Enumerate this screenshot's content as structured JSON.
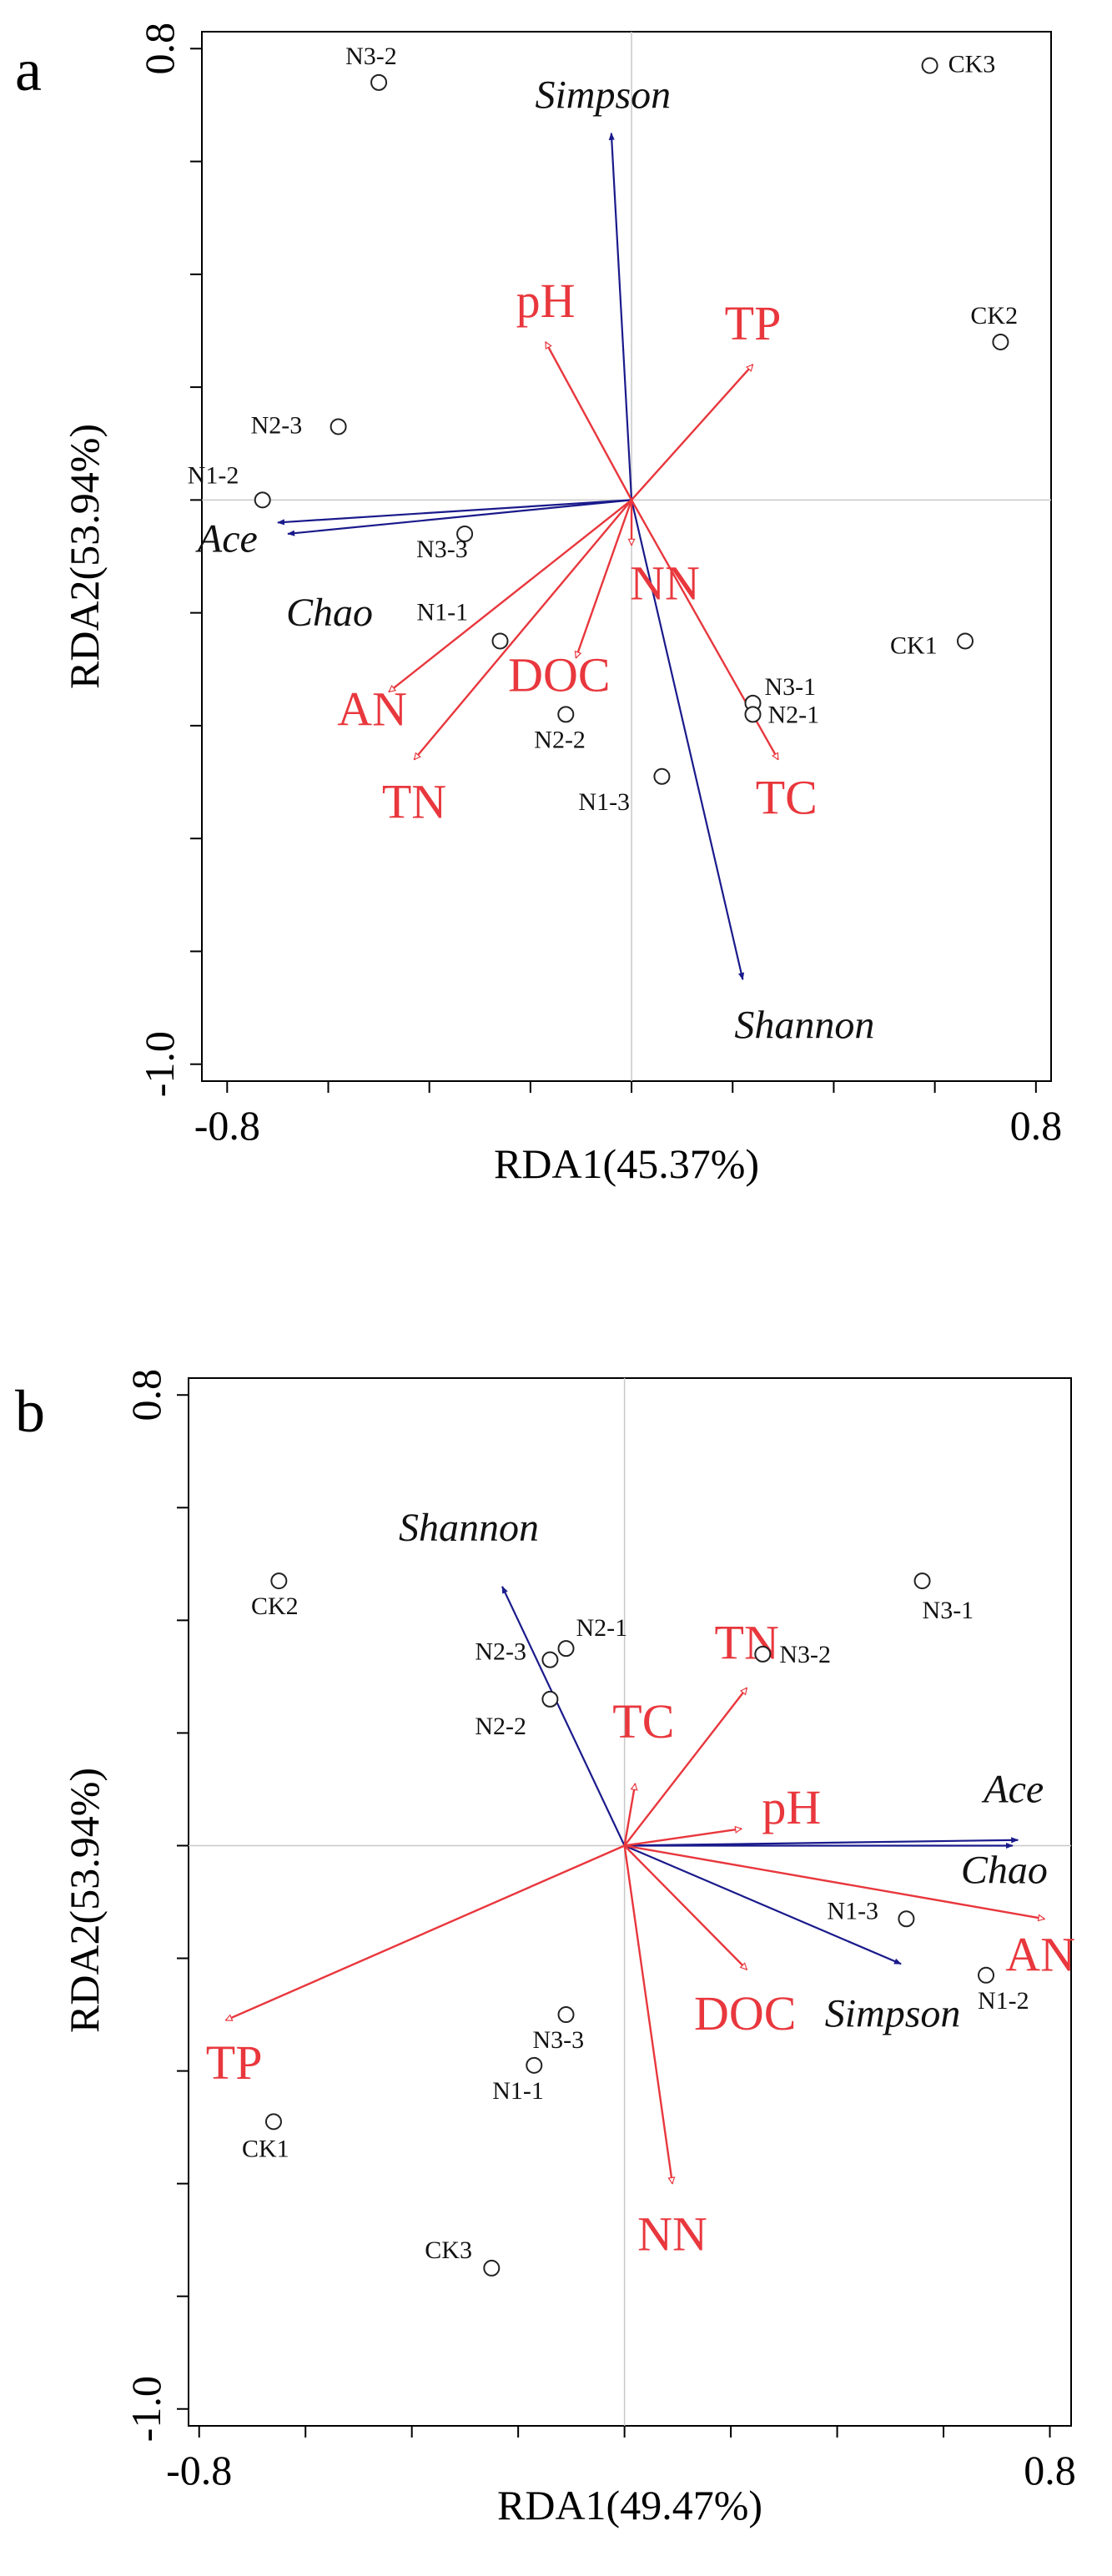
{
  "colors": {
    "environment": "#e8373d",
    "diversity": "#1a1a8c",
    "axis": "#000000",
    "reference_line": "#c8c8c8",
    "site": "#222222"
  },
  "chart_data": [
    {
      "type": "scatter",
      "panel_label": "a",
      "title": "",
      "xlabel": "RDA1(45.37%)",
      "ylabel": "RDA2(53.94%)",
      "xlim": [
        -0.85,
        0.83
      ],
      "ylim": [
        -1.03,
        0.83
      ],
      "x_tick_labels": [
        {
          "value": -0.8,
          "label": "-0.8"
        },
        {
          "value": 0.8,
          "label": "0.8"
        }
      ],
      "y_tick_labels": [
        {
          "value": 0.8,
          "label": "0.8"
        },
        {
          "value": -1.0,
          "label": "-1.0"
        }
      ],
      "grid": false,
      "sites": [
        {
          "label": "N3-2",
          "x": -0.5,
          "y": 0.74
        },
        {
          "label": "CK3",
          "x": 0.59,
          "y": 0.77
        },
        {
          "label": "CK2",
          "x": 0.73,
          "y": 0.28
        },
        {
          "label": "N2-3",
          "x": -0.58,
          "y": 0.13
        },
        {
          "label": "N1-2",
          "x": -0.73,
          "y": 0.0
        },
        {
          "label": "N3-3",
          "x": -0.33,
          "y": -0.06
        },
        {
          "label": "N1-1",
          "x": -0.26,
          "y": -0.25
        },
        {
          "label": "CK1",
          "x": 0.66,
          "y": -0.25
        },
        {
          "label": "N3-1",
          "x": 0.24,
          "y": -0.36
        },
        {
          "label": "N2-1",
          "x": 0.24,
          "y": -0.38
        },
        {
          "label": "N2-2",
          "x": -0.13,
          "y": -0.38
        },
        {
          "label": "N1-3",
          "x": 0.06,
          "y": -0.49
        }
      ],
      "environment_vectors": [
        {
          "label": "pH",
          "x": -0.17,
          "y": 0.28
        },
        {
          "label": "TP",
          "x": 0.24,
          "y": 0.24
        },
        {
          "label": "NN",
          "x": 0.0,
          "y": -0.08
        },
        {
          "label": "DOC",
          "x": -0.11,
          "y": -0.28
        },
        {
          "label": "AN",
          "x": -0.48,
          "y": -0.34
        },
        {
          "label": "TN",
          "x": -0.43,
          "y": -0.46
        },
        {
          "label": "TC",
          "x": 0.29,
          "y": -0.46
        }
      ],
      "diversity_vectors": [
        {
          "label": "Simpson",
          "x": -0.04,
          "y": 0.65
        },
        {
          "label": "Ace",
          "x": -0.7,
          "y": -0.04
        },
        {
          "label": "Chao",
          "x": -0.68,
          "y": -0.06
        },
        {
          "label": "Shannon",
          "x": 0.22,
          "y": -0.85
        }
      ]
    },
    {
      "type": "scatter",
      "panel_label": "b",
      "title": "",
      "xlabel": "RDA1(49.47%)",
      "ylabel": "RDA2(53.94%)",
      "xlim": [
        -0.82,
        0.84
      ],
      "ylim": [
        -1.03,
        0.83
      ],
      "x_tick_labels": [
        {
          "value": -0.8,
          "label": "-0.8"
        },
        {
          "value": 0.8,
          "label": "0.8"
        }
      ],
      "y_tick_labels": [
        {
          "value": 0.8,
          "label": "0.8"
        },
        {
          "value": -1.0,
          "label": "-1.0"
        }
      ],
      "grid": false,
      "sites": [
        {
          "label": "CK2",
          "x": -0.65,
          "y": 0.47
        },
        {
          "label": "N3-1",
          "x": 0.56,
          "y": 0.47
        },
        {
          "label": "N2-3",
          "x": -0.14,
          "y": 0.33
        },
        {
          "label": "N2-1",
          "x": -0.11,
          "y": 0.35
        },
        {
          "label": "N3-2",
          "x": 0.26,
          "y": 0.34
        },
        {
          "label": "N2-2",
          "x": -0.14,
          "y": 0.26
        },
        {
          "label": "N1-3",
          "x": 0.53,
          "y": -0.13
        },
        {
          "label": "N1-2",
          "x": 0.68,
          "y": -0.23
        },
        {
          "label": "N3-3",
          "x": -0.11,
          "y": -0.3
        },
        {
          "label": "N1-1",
          "x": -0.17,
          "y": -0.39
        },
        {
          "label": "CK1",
          "x": -0.66,
          "y": -0.49
        },
        {
          "label": "CK3",
          "x": -0.25,
          "y": -0.75
        }
      ],
      "environment_vectors": [
        {
          "label": "TN",
          "x": 0.23,
          "y": 0.28
        },
        {
          "label": "TC",
          "x": 0.02,
          "y": 0.11
        },
        {
          "label": "pH",
          "x": 0.22,
          "y": 0.03
        },
        {
          "label": "AN",
          "x": 0.79,
          "y": -0.13
        },
        {
          "label": "DOC",
          "x": 0.23,
          "y": -0.22
        },
        {
          "label": "TP",
          "x": -0.75,
          "y": -0.31
        },
        {
          "label": "NN",
          "x": 0.09,
          "y": -0.6
        }
      ],
      "diversity_vectors": [
        {
          "label": "Shannon",
          "x": -0.23,
          "y": 0.46
        },
        {
          "label": "Ace",
          "x": 0.74,
          "y": 0.01
        },
        {
          "label": "Chao",
          "x": 0.73,
          "y": 0.0
        },
        {
          "label": "Simpson",
          "x": 0.52,
          "y": -0.21
        }
      ]
    }
  ]
}
